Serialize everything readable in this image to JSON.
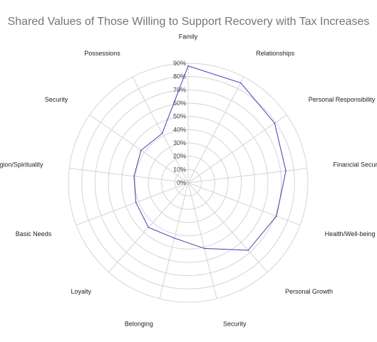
{
  "chart_data": {
    "type": "radar",
    "title": "Shared Values of Those Willing to Support Recovery with Tax Increases",
    "categories": [
      "Family",
      "Relationships",
      "Personal Responsibility",
      "Financial Security",
      "Health/Well-being",
      "Personal Growth",
      "Security",
      "Belonging",
      "Loyalty",
      "Basic Needs",
      "Religion/Spirituality",
      "Security",
      "Possessions"
    ],
    "series": [
      {
        "values": [
          88,
          85,
          79,
          74,
          71,
          68,
          51,
          43,
          45,
          42,
          41,
          43,
          42
        ]
      }
    ],
    "rlim": [
      0,
      90
    ],
    "tick_labels": [
      "0%",
      "10%",
      "20%",
      "30%",
      "40%",
      "50%",
      "60%",
      "70%",
      "80%",
      "90%"
    ],
    "grid": true,
    "legend": "none",
    "colors": {
      "series": "#3f3fb2",
      "grid": "#d4d4d4",
      "title": "#757575"
    }
  }
}
